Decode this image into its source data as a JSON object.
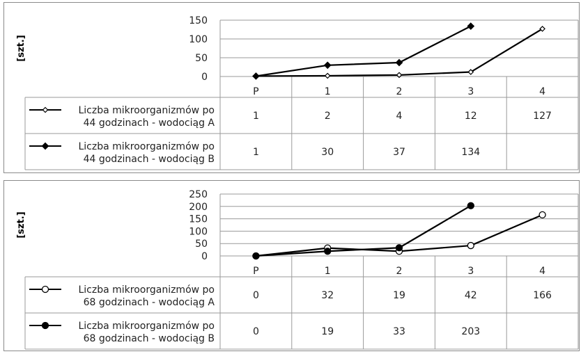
{
  "chart_data": [
    {
      "type": "line",
      "ylabel": "[szt.]",
      "ylim": [
        0,
        150
      ],
      "yticks": [
        0,
        50,
        100,
        150
      ],
      "categories": [
        "P",
        "1",
        "2",
        "3",
        "4"
      ],
      "grid": true,
      "legend": "table-left",
      "series": [
        {
          "name": "Liczba mikroorganizmów po 44 godzinach - wodociąg A",
          "marker": "open-diamond",
          "values": [
            1,
            2,
            4,
            12,
            127
          ],
          "labels": [
            "1",
            "2",
            "4",
            "12",
            "127"
          ]
        },
        {
          "name": "Liczba mikroorganizmów po 44 godzinach - wodociąg B",
          "marker": "filled-diamond",
          "values": [
            1,
            30,
            37,
            134,
            null
          ],
          "labels": [
            "1",
            "30",
            "37",
            "134",
            ""
          ]
        }
      ]
    },
    {
      "type": "line",
      "ylabel": "[szt.]",
      "ylim": [
        0,
        250
      ],
      "yticks": [
        0,
        50,
        100,
        150,
        200,
        250
      ],
      "categories": [
        "P",
        "1",
        "2",
        "3",
        "4"
      ],
      "grid": true,
      "legend": "table-left",
      "series": [
        {
          "name": "Liczba mikroorganizmów po 68 godzinach - wodociąg A",
          "marker": "open-circle",
          "values": [
            0,
            32,
            19,
            42,
            166
          ],
          "labels": [
            "0",
            "32",
            "19",
            "42",
            "166"
          ]
        },
        {
          "name": "Liczba mikroorganizmów po 68 godzinach - wodociąg B",
          "marker": "filled-circle",
          "values": [
            0,
            19,
            33,
            203,
            null
          ],
          "labels": [
            "0",
            "19",
            "33",
            "203",
            ""
          ]
        }
      ]
    }
  ]
}
